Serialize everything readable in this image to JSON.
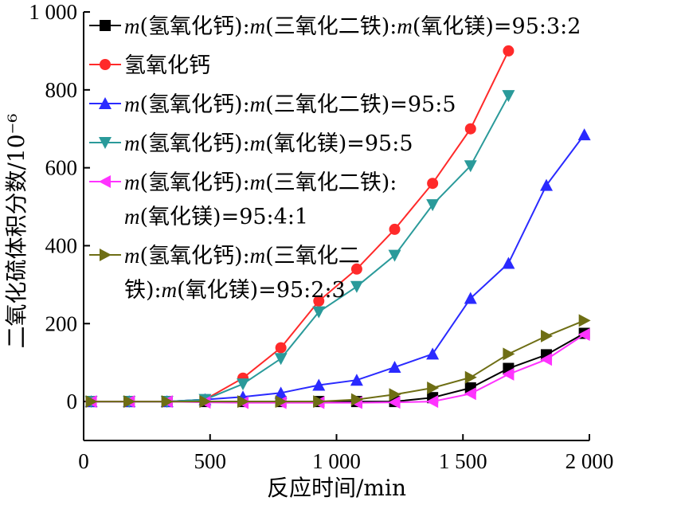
{
  "chart_data": {
    "type": "line",
    "xlabel": "反应时间/min",
    "ylabel": "二氧化硫体积分数/10⁻⁶",
    "xlim": [
      0,
      2000
    ],
    "ylim": [
      -100,
      1000
    ],
    "xticks": [
      0,
      500,
      1000,
      1500,
      2000
    ],
    "xtick_labels": [
      "0",
      "500",
      "1 000",
      "1 500",
      "2 000"
    ],
    "yticks": [
      0,
      200,
      400,
      600,
      800,
      1000
    ],
    "ytick_labels": [
      "0",
      "200",
      "400",
      "600",
      "800",
      "1 000"
    ],
    "grid": false,
    "legend_position": "top-left",
    "series": [
      {
        "name": "m(氢氧化钙):m(三氧化二铁):m(氧化镁)=95:3:2",
        "legend_lines": [
          "m(氢氧化钙):m(三氧化二铁):m(氧化镁)=95:3:2"
        ],
        "color": "#000000",
        "marker": "square",
        "x": [
          30,
          180,
          330,
          480,
          630,
          780,
          930,
          1080,
          1230,
          1380,
          1530,
          1680,
          1830,
          1980
        ],
        "y": [
          0,
          0,
          0,
          0,
          0,
          0,
          0,
          0,
          0,
          10,
          35,
          85,
          120,
          175
        ]
      },
      {
        "name": "氢氧化钙",
        "legend_lines": [
          "氢氧化钙"
        ],
        "color": "#ff2a2a",
        "marker": "circle",
        "x": [
          30,
          180,
          330,
          480,
          630,
          780,
          930,
          1080,
          1230,
          1380,
          1530,
          1680
        ],
        "y": [
          0,
          0,
          0,
          5,
          60,
          138,
          258,
          340,
          442,
          560,
          700,
          900
        ]
      },
      {
        "name": "m(氢氧化钙):m(三氧化二铁)=95:5",
        "legend_lines": [
          "m(氢氧化钙):m(三氧化二铁)=95:5"
        ],
        "color": "#2a2aff",
        "marker": "triangle-up",
        "x": [
          30,
          180,
          330,
          480,
          630,
          780,
          930,
          1080,
          1230,
          1380,
          1530,
          1680,
          1830,
          1980
        ],
        "y": [
          0,
          0,
          0,
          5,
          12,
          22,
          42,
          55,
          88,
          122,
          265,
          355,
          555,
          685
        ]
      },
      {
        "name": "m(氢氧化钙):m(氧化镁)=95:5",
        "legend_lines": [
          "m(氢氧化钙):m(氧化镁)=95:5"
        ],
        "color": "#2a9a9a",
        "marker": "triangle-down",
        "x": [
          30,
          180,
          330,
          480,
          630,
          780,
          930,
          1080,
          1230,
          1380,
          1530,
          1680
        ],
        "y": [
          0,
          0,
          0,
          5,
          45,
          110,
          230,
          295,
          375,
          505,
          605,
          785
        ]
      },
      {
        "name": "m(氢氧化钙):m(三氧化二铁):m(氧化镁)=95:4:1",
        "legend_lines": [
          "m(氢氧化钙):m(三氧化二铁):",
          "m(氧化镁)=95:4:1"
        ],
        "color": "#ff33ff",
        "marker": "triangle-left",
        "x": [
          30,
          180,
          330,
          480,
          630,
          780,
          930,
          1080,
          1230,
          1380,
          1530,
          1680,
          1830,
          1980
        ],
        "y": [
          0,
          0,
          0,
          -2,
          -3,
          -3,
          -3,
          -3,
          -2,
          0,
          20,
          70,
          108,
          172
        ]
      },
      {
        "name": "m(氢氧化钙):m(三氧化二铁):m(氧化镁)=95:2:3",
        "legend_lines": [
          "m(氢氧化钙):m(三氧化二",
          "铁):m(氧化镁)=95:2:3"
        ],
        "color": "#6e6e14",
        "marker": "triangle-right",
        "x": [
          30,
          180,
          330,
          480,
          630,
          780,
          930,
          1080,
          1230,
          1380,
          1530,
          1680,
          1830,
          1980
        ],
        "y": [
          0,
          0,
          0,
          0,
          0,
          0,
          0,
          5,
          18,
          35,
          62,
          122,
          168,
          208
        ]
      }
    ]
  }
}
